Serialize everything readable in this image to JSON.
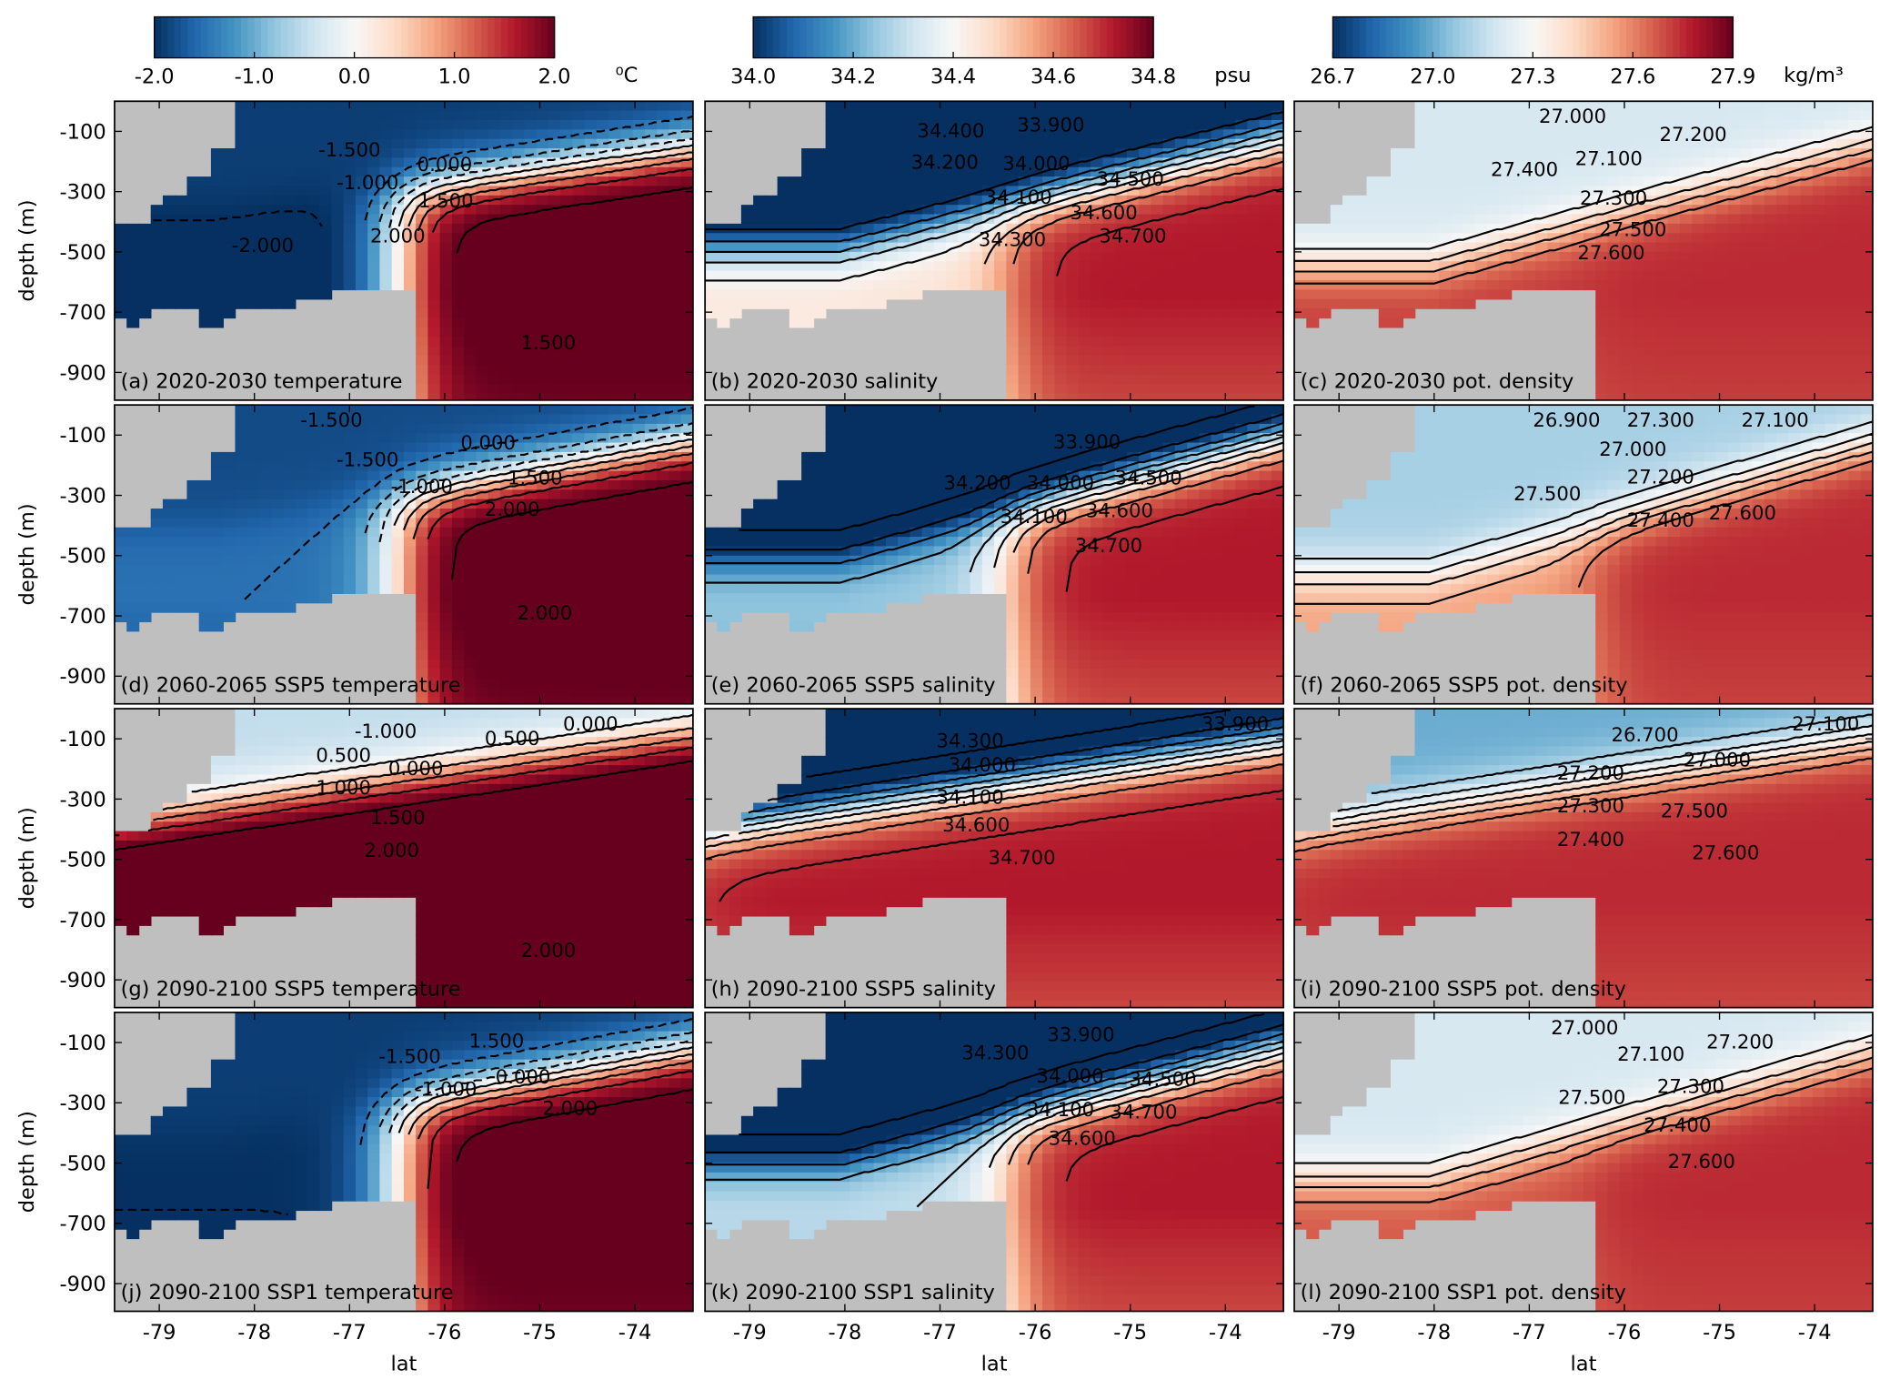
{
  "chart_data": {
    "type": "heatmap",
    "xlabel": "lat",
    "ylabel": "depth (m)",
    "xlim": [
      -79.47,
      -73.39
    ],
    "ylim": [
      -1000,
      0
    ],
    "xticks": [
      "-79",
      "-78",
      "-77",
      "-76",
      "-75",
      "-74"
    ],
    "xtick_values": [
      -79,
      -78,
      -77,
      -76,
      -75,
      -74
    ],
    "yticks": [
      "-100",
      "-300",
      "-500",
      "-700",
      "-900"
    ],
    "ytick_values": [
      -100,
      -300,
      -500,
      -700,
      -900
    ],
    "colormap": "RdBu_r",
    "land_color": "#bfbfbf",
    "colorbars": [
      {
        "variable": "temperature",
        "range": [
          -2.0,
          2.0
        ],
        "ticks": [
          "-2.0",
          "-1.0",
          "0.0",
          "1.0",
          "2.0"
        ],
        "unit": "⁰C"
      },
      {
        "variable": "salinity",
        "range": [
          34.0,
          34.8
        ],
        "ticks": [
          "34.0",
          "34.2",
          "34.4",
          "34.6",
          "34.8"
        ],
        "unit": "psu"
      },
      {
        "variable": "pot. density",
        "range": [
          26.7,
          27.9
        ],
        "ticks": [
          "26.7",
          "27.0",
          "27.3",
          "27.6",
          "27.9"
        ],
        "unit": "kg/m³"
      }
    ],
    "panels": [
      {
        "label": "(a) 2020-2030   temperature",
        "var": 0,
        "approx_values": {
          "surface": -1.9,
          "deep_offshore": 2.2,
          "shelf": -2.1,
          "front_lat": -76.5,
          "thermocline_offshore": 150,
          "thermocline_front": 300
        },
        "contour_levels": [
          -2,
          -1.5,
          -1,
          -0.5,
          0,
          0.5,
          1,
          1.5,
          2
        ],
        "contour_labels": [
          "-1.500",
          "-1.000",
          "0.000",
          "1.500",
          "2.000",
          "-2.000",
          "1.500"
        ]
      },
      {
        "label": "(b) 2020-2030   salinity",
        "var": 1,
        "approx_values": {
          "surface": 33.9,
          "deep_offshore": 34.72,
          "shelf": 34.45,
          "front_lat": -76.3,
          "thermocline_offshore": 120,
          "thermocline_front": 350
        },
        "contour_levels": [
          33.9,
          34.0,
          34.1,
          34.2,
          34.3,
          34.4,
          34.5,
          34.6,
          34.7
        ],
        "contour_labels": [
          "33.900",
          "34.000",
          "34.100",
          "34.200",
          "34.300",
          "34.400",
          "34.500",
          "34.600",
          "34.700"
        ]
      },
      {
        "label": "(c) 2020-2030   pot. density",
        "var": 2,
        "approx_values": {
          "surface": 27.2,
          "deep_offshore": 27.75,
          "shelf": 27.72,
          "front_lat": -76.3,
          "thermocline_offshore": 150,
          "thermocline_front": 400
        },
        "contour_levels": [
          27.0,
          27.1,
          27.2,
          27.3,
          27.4,
          27.5,
          27.6
        ],
        "contour_labels": [
          "27.000",
          "27.100",
          "27.200",
          "27.300",
          "27.400",
          "27.500",
          "27.600"
        ]
      },
      {
        "label": "(d) 2060-2065 SSP5 temperature",
        "var": 0,
        "approx_values": {
          "surface": -1.8,
          "deep_offshore": 2.2,
          "shelf": -1.5,
          "front_lat": -76.5,
          "thermocline_offshore": 120,
          "thermocline_front": 300
        },
        "contour_levels": [
          -1.5,
          -1,
          -0.5,
          0,
          0.5,
          1,
          1.5,
          2
        ],
        "contour_labels": [
          "-1.500",
          "-1.500",
          "-1.000",
          "0.000",
          "1.500",
          "2.000",
          "2.000"
        ]
      },
      {
        "label": "(e) 2060-2065 SSP5 salinity",
        "var": 1,
        "approx_values": {
          "surface": 33.85,
          "deep_offshore": 34.72,
          "shelf": 34.25,
          "front_lat": -76.3,
          "thermocline_offshore": 100,
          "thermocline_front": 350
        },
        "contour_levels": [
          33.9,
          34.0,
          34.1,
          34.2,
          34.3,
          34.4,
          34.5,
          34.6,
          34.7
        ],
        "contour_labels": [
          "33.900",
          "34.000",
          "34.100",
          "34.200",
          "34.500",
          "34.600",
          "34.700"
        ]
      },
      {
        "label": "(f) 2060-2065 SSP5 pot. density",
        "var": 2,
        "approx_values": {
          "surface": 27.1,
          "deep_offshore": 27.75,
          "shelf": 27.55,
          "front_lat": -76.3,
          "thermocline_offshore": 130,
          "thermocline_front": 400
        },
        "contour_levels": [
          26.9,
          27.0,
          27.1,
          27.2,
          27.3,
          27.4,
          27.5,
          27.6
        ],
        "contour_labels": [
          "26.900",
          "27.000",
          "27.100",
          "27.200",
          "27.300",
          "27.400",
          "27.500",
          "27.600"
        ]
      },
      {
        "label": "(g) 2090-2100 SSP5 temperature",
        "var": 0,
        "approx_values": {
          "surface": -0.5,
          "deep_offshore": 2.4,
          "shelf": 2.4,
          "front_lat": -79.4,
          "thermocline_offshore": 90,
          "thermocline_front": 380
        },
        "contour_levels": [
          -1,
          -0.5,
          0,
          0.5,
          1,
          1.5,
          2
        ],
        "contour_labels": [
          "-1.000",
          "0.000",
          "0.000",
          "0.500",
          "1.000",
          "1.500",
          "2.000",
          "0.500",
          "2.000"
        ]
      },
      {
        "label": "(h) 2090-2100 SSP5 salinity",
        "var": 1,
        "approx_values": {
          "surface": 33.85,
          "deep_offshore": 34.72,
          "shelf": 34.68,
          "front_lat": -79.4,
          "thermocline_offshore": 100,
          "thermocline_front": 400
        },
        "contour_levels": [
          33.9,
          34.0,
          34.1,
          34.2,
          34.3,
          34.4,
          34.5,
          34.6,
          34.7
        ],
        "contour_labels": [
          "33.900",
          "34.000",
          "34.100",
          "34.300",
          "34.600",
          "34.700"
        ]
      },
      {
        "label": "(i) 2090-2100 SSP5 pot. density",
        "var": 2,
        "approx_values": {
          "surface": 27.0,
          "deep_offshore": 27.75,
          "shelf": 27.72,
          "front_lat": -79.4,
          "thermocline_offshore": 100,
          "thermocline_front": 400
        },
        "contour_levels": [
          26.7,
          27.0,
          27.1,
          27.2,
          27.3,
          27.4,
          27.5,
          27.6
        ],
        "contour_labels": [
          "26.700",
          "27.000",
          "27.100",
          "27.200",
          "27.300",
          "27.400",
          "27.500",
          "27.600"
        ]
      },
      {
        "label": "(j) 2090-2100 SSP1 temperature",
        "var": 0,
        "approx_values": {
          "surface": -1.9,
          "deep_offshore": 2.2,
          "shelf": -2.0,
          "front_lat": -76.5,
          "thermocline_offshore": 120,
          "thermocline_front": 300
        },
        "contour_levels": [
          -2,
          -1.5,
          -1,
          -0.5,
          0,
          0.5,
          1,
          1.5,
          2
        ],
        "contour_labels": [
          "-1.500",
          "-1.000",
          "0.000",
          "1.500",
          "2.000"
        ]
      },
      {
        "label": "(k) 2090-2100 SSP1 salinity",
        "var": 1,
        "approx_values": {
          "surface": 33.85,
          "deep_offshore": 34.72,
          "shelf": 34.3,
          "front_lat": -76.3,
          "thermocline_offshore": 110,
          "thermocline_front": 350
        },
        "contour_levels": [
          33.9,
          34.0,
          34.1,
          34.2,
          34.3,
          34.4,
          34.5,
          34.6,
          34.7
        ],
        "contour_labels": [
          "33.900",
          "34.000",
          "34.100",
          "34.300",
          "34.500",
          "34.600",
          "34.700"
        ]
      },
      {
        "label": "(l) 2090-2100 SSP1 pot. density",
        "var": 2,
        "approx_values": {
          "surface": 27.2,
          "deep_offshore": 27.75,
          "shelf": 27.68,
          "front_lat": -76.3,
          "thermocline_offshore": 140,
          "thermocline_front": 400
        },
        "contour_levels": [
          27.0,
          27.1,
          27.2,
          27.3,
          27.4,
          27.5,
          27.6
        ],
        "contour_labels": [
          "27.000",
          "27.100",
          "27.200",
          "27.300",
          "27.400",
          "27.500",
          "27.600"
        ]
      }
    ]
  }
}
